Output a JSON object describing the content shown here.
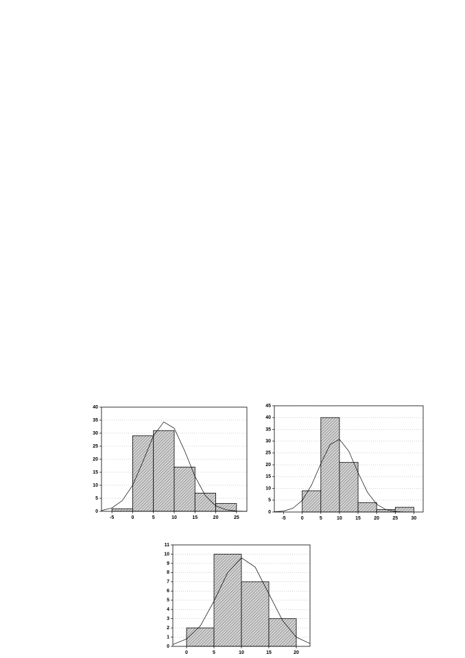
{
  "chart_data": [
    {
      "type": "histogram",
      "bins": [
        -5,
        0,
        5,
        10,
        15,
        20,
        25
      ],
      "counts": [
        1,
        29,
        31,
        17,
        7,
        3
      ],
      "xlim": [
        -7.5,
        27.5
      ],
      "xticks": [
        -5,
        0,
        5,
        10,
        15,
        20,
        25
      ],
      "ylim": [
        0,
        40
      ],
      "yticks": [
        0,
        5,
        10,
        15,
        20,
        25,
        30,
        35,
        40
      ],
      "grid": true,
      "color": "#b8b8b8",
      "curve": {
        "x": [
          -7.5,
          -5,
          -2.5,
          0,
          2.5,
          5,
          7.5,
          10,
          12.5,
          15,
          17.5,
          20,
          22.5,
          25,
          27.5
        ],
        "y": [
          0.3,
          1.3,
          4.1,
          10.0,
          19.2,
          29.0,
          34.3,
          31.9,
          23.3,
          13.4,
          6.0,
          2.1,
          0.6,
          0.1,
          0.0
        ]
      }
    },
    {
      "type": "histogram",
      "bins": [
        0,
        5,
        10,
        15,
        20,
        25,
        30
      ],
      "counts": [
        9,
        40,
        21,
        4,
        1,
        2
      ],
      "xlim": [
        -7.5,
        32.5
      ],
      "xticks": [
        -5,
        0,
        5,
        10,
        15,
        20,
        25,
        30
      ],
      "ylim": [
        0,
        45
      ],
      "yticks": [
        0,
        5,
        10,
        15,
        20,
        25,
        30,
        35,
        40,
        45
      ],
      "grid": true,
      "color": "#b8b8b8",
      "curve": {
        "x": [
          -7.5,
          -5,
          -2.5,
          0,
          2.5,
          5,
          7.5,
          10,
          12.5,
          15,
          17.5,
          20,
          22.5,
          25,
          27.5
        ],
        "y": [
          0.1,
          0.4,
          1.6,
          4.9,
          11.4,
          20.5,
          28.6,
          30.8,
          25.8,
          16.7,
          8.4,
          3.3,
          1.0,
          0.2,
          0.0
        ]
      }
    },
    {
      "type": "histogram",
      "bins": [
        0,
        5,
        10,
        15,
        20
      ],
      "counts": [
        2,
        10,
        7,
        3
      ],
      "xlim": [
        -2.5,
        22.5
      ],
      "xticks": [
        0,
        5,
        10,
        15,
        20
      ],
      "ylim": [
        0,
        11
      ],
      "yticks": [
        0,
        1,
        2,
        3,
        4,
        5,
        6,
        7,
        8,
        9,
        10,
        11
      ],
      "grid": true,
      "color": "#b8b8b8",
      "curve": {
        "x": [
          -2.5,
          0,
          2.5,
          5,
          7.5,
          10,
          12.5,
          15,
          17.5,
          20,
          22.5
        ],
        "y": [
          0.2,
          0.8,
          2.2,
          4.9,
          8.0,
          9.6,
          8.6,
          5.7,
          2.8,
          1.0,
          0.3
        ]
      }
    }
  ]
}
